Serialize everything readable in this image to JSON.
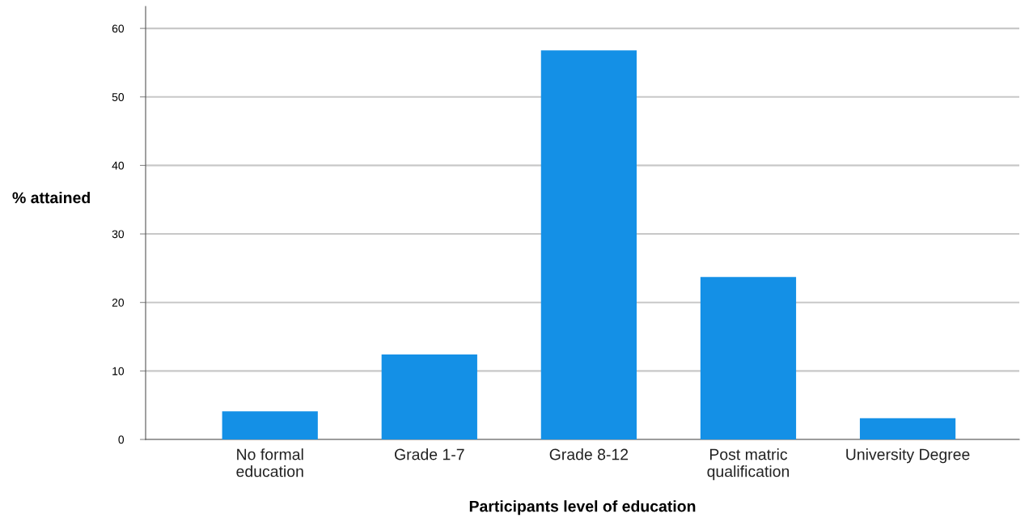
{
  "chart_data": {
    "type": "bar",
    "xlabel": "Participants level of education",
    "ylabel": "% attained",
    "categories": [
      "No formal\neducation",
      "Grade 1-7",
      "Grade 8-12",
      "Post matric\nqualification",
      "University Degree"
    ],
    "values": [
      4.1,
      12.4,
      56.8,
      23.7,
      3.1
    ],
    "color": "#1490e6",
    "ylim": [
      0,
      63.2
    ],
    "yticks": [
      0,
      10,
      20,
      30,
      40,
      50,
      60
    ],
    "grid": "y",
    "legend": false
  }
}
